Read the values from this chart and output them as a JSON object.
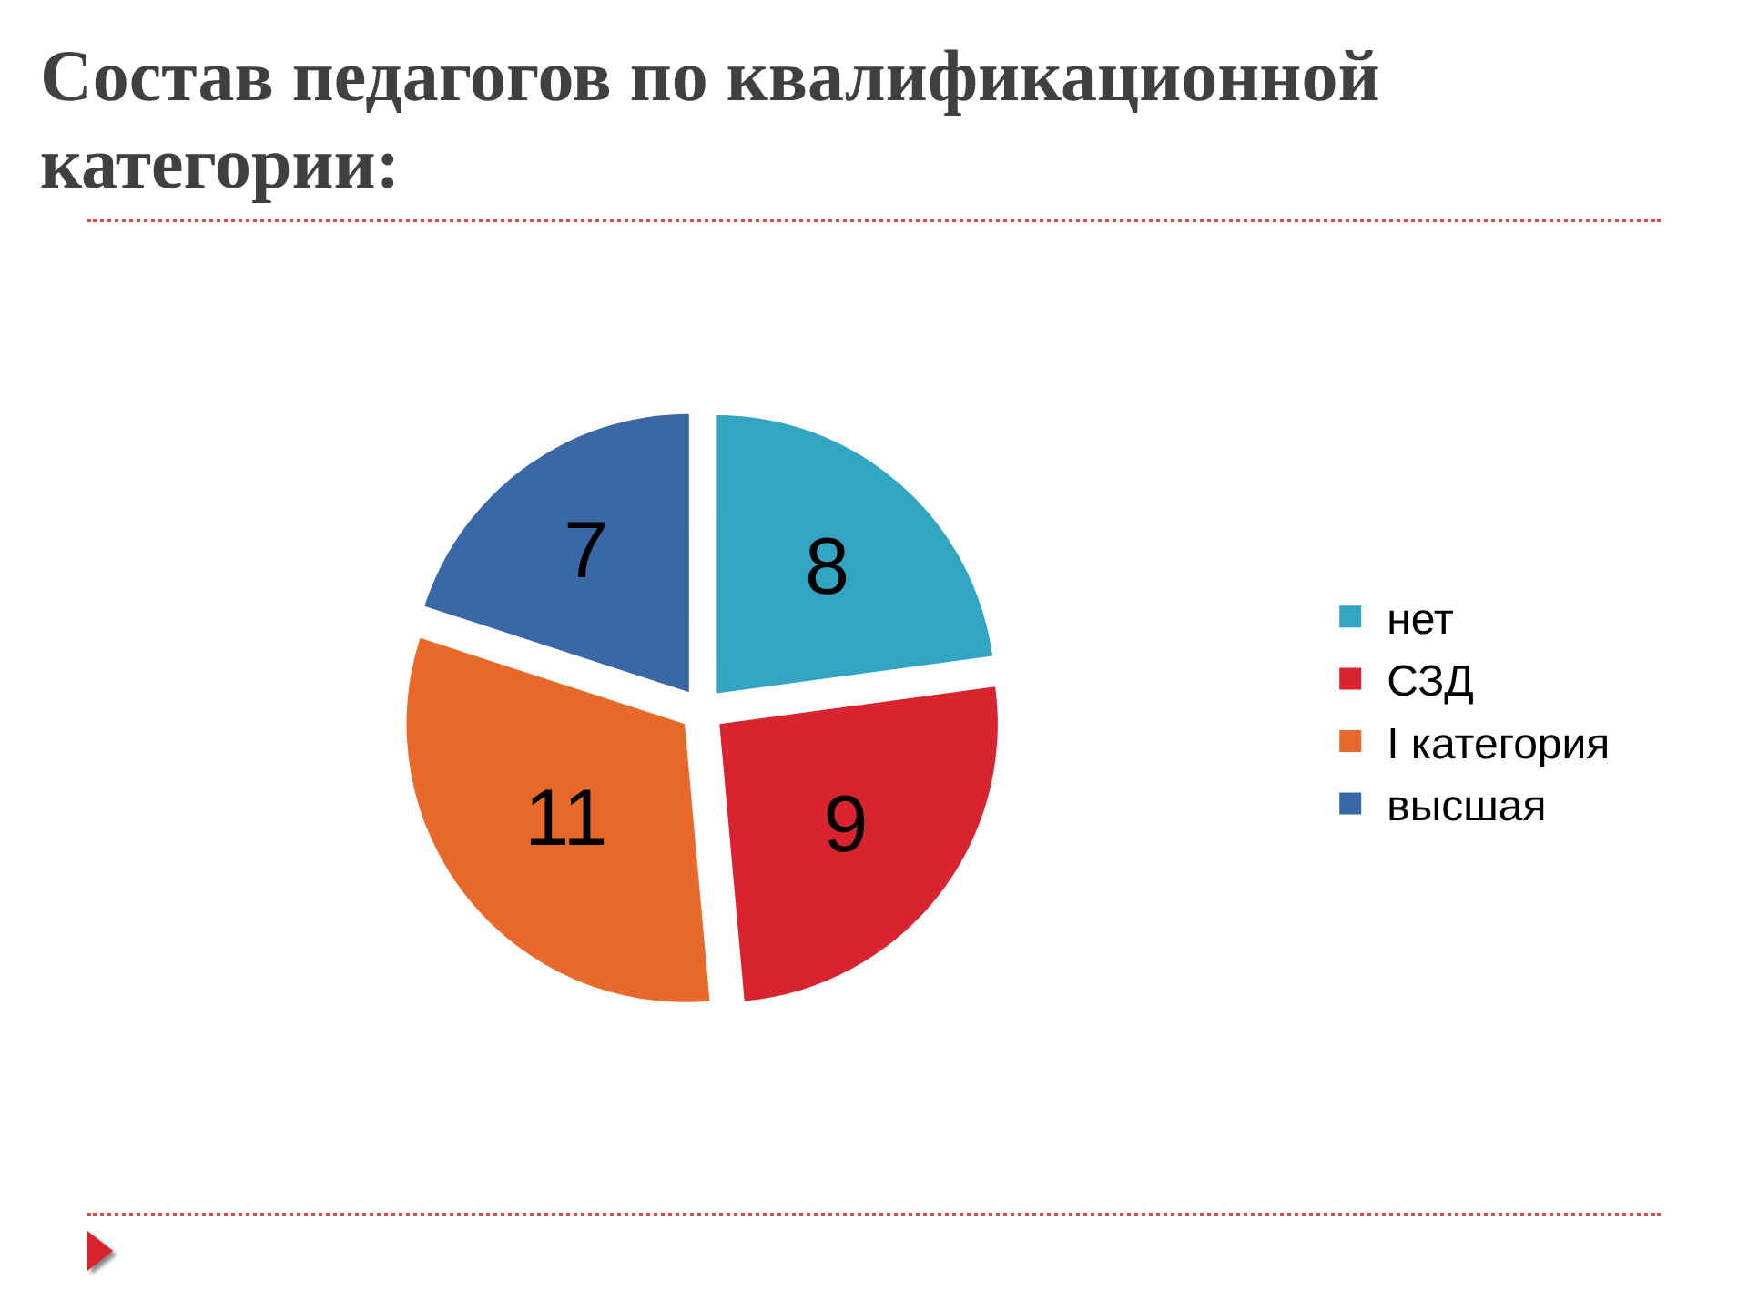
{
  "chart_data": {
    "type": "pie",
    "title": "Состав педагогов по квалификационной категории:",
    "categories": [
      "нет",
      "СЗД",
      "I категория",
      "высшая"
    ],
    "values": [
      8,
      9,
      11,
      7
    ],
    "colors": [
      "#31a5c2",
      "#d9232e",
      "#e8692a",
      "#3a68a6"
    ],
    "data_labels": true,
    "legend": "right"
  }
}
